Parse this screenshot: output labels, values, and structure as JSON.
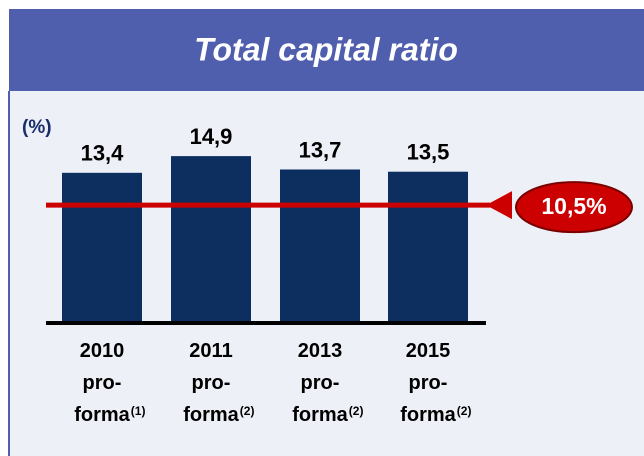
{
  "chart_data": {
    "type": "bar",
    "title": "Total capital ratio",
    "y_label": "(%)",
    "categories": [
      "2010 pro-forma",
      "2011 pro-forma",
      "2013 pro-forma",
      "2015 pro-forma"
    ],
    "footnotes": [
      "(1)",
      "(2)",
      "(2)",
      "(2)"
    ],
    "values": [
      13.4,
      14.9,
      13.7,
      13.5
    ],
    "value_labels": [
      "13,4",
      "14,9",
      "13,7",
      "13,5"
    ],
    "color": "#0c2f5f",
    "ylim": [
      0,
      15
    ],
    "reference_line": {
      "value": 10.5,
      "label": "10,5%",
      "color": "#cc0000"
    }
  }
}
